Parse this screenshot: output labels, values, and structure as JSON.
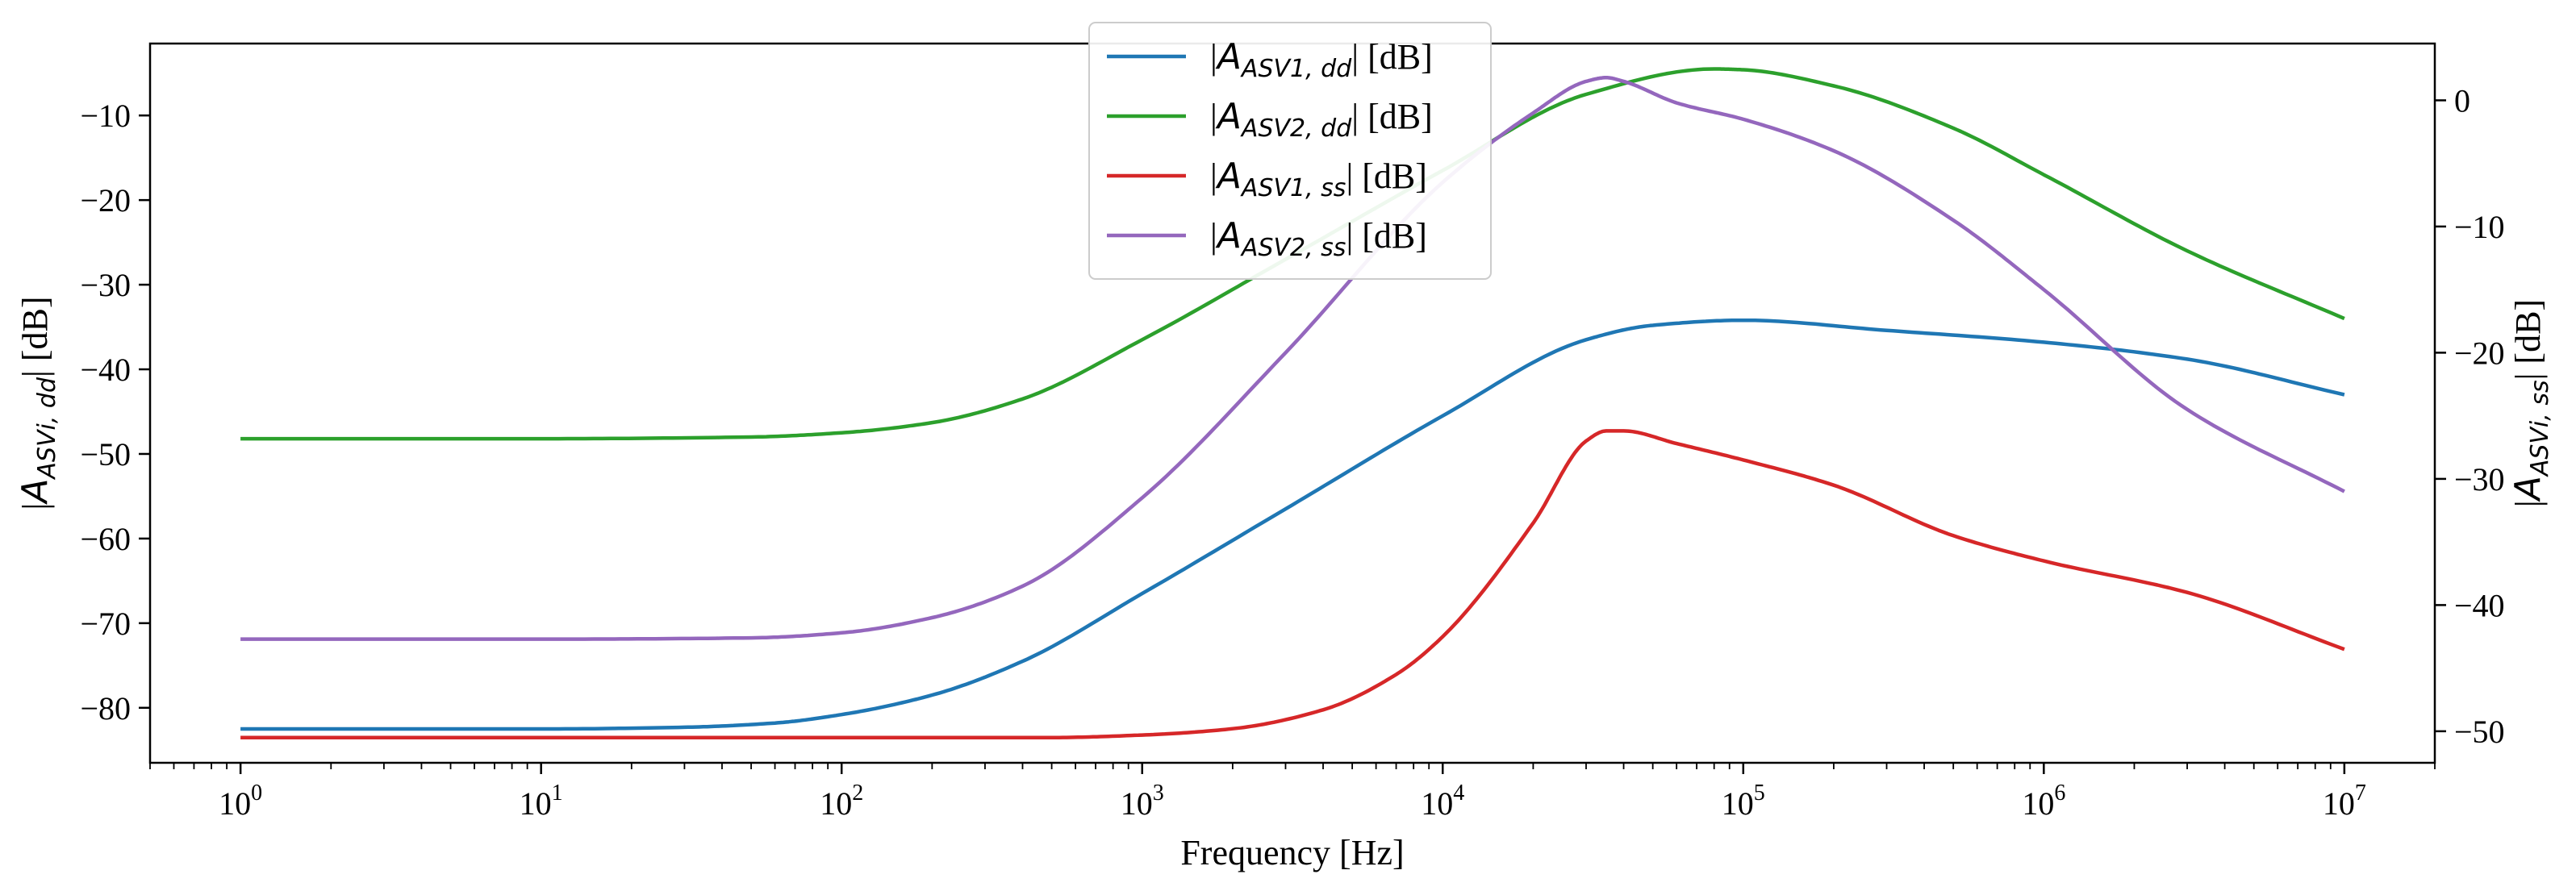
{
  "chart_data": {
    "type": "line",
    "x_scale": "log",
    "xlabel": "Frequency [Hz]",
    "xlim": [
      0.5,
      20000000
    ],
    "x_ticks": [
      {
        "value": 1,
        "base": "10",
        "exp": "0"
      },
      {
        "value": 10,
        "base": "10",
        "exp": "1"
      },
      {
        "value": 100,
        "base": "10",
        "exp": "2"
      },
      {
        "value": 1000,
        "base": "10",
        "exp": "3"
      },
      {
        "value": 10000,
        "base": "10",
        "exp": "4"
      },
      {
        "value": 100000,
        "base": "10",
        "exp": "5"
      },
      {
        "value": 1000000,
        "base": "10",
        "exp": "6"
      },
      {
        "value": 10000000,
        "base": "10",
        "exp": "7"
      }
    ],
    "y_left": {
      "label_sym": "A",
      "label_sub": "ASVi, dd",
      "label_unit": " [dB]",
      "ylim": [
        -86.5,
        -1.5
      ],
      "ticks": [
        -10,
        -20,
        -30,
        -40,
        -50,
        -60,
        -70,
        -80
      ],
      "tick_labels": [
        "−10",
        "−20",
        "−30",
        "−40",
        "−50",
        "−60",
        "−70",
        "−80"
      ]
    },
    "y_right": {
      "label_sym": "A",
      "label_sub": "ASVi, ss",
      "label_unit": " [dB]",
      "ylim": [
        -52.5,
        4.5
      ],
      "ticks": [
        0,
        -10,
        -20,
        -30,
        -40,
        -50
      ],
      "tick_labels": [
        "0",
        "−10",
        "−20",
        "−30",
        "−40",
        "−50"
      ]
    },
    "series": [
      {
        "name": "|A_ASV1,dd| [dB]",
        "sym": "A",
        "sub": "ASV1, dd",
        "unit": " [dB]",
        "axis": "left",
        "color": "#1f77b4",
        "x": [
          1,
          10,
          30,
          60,
          100,
          200,
          400,
          1000,
          3000,
          10000,
          30000,
          50000,
          100000,
          300000,
          1000000,
          3000000,
          10000000
        ],
        "y": [
          -82.5,
          -82.5,
          -82.3,
          -81.8,
          -80.8,
          -78.5,
          -74.5,
          -66.5,
          -56.5,
          -45.5,
          -36.5,
          -34.8,
          -34.2,
          -35.4,
          -36.8,
          -38.8,
          -43
        ]
      },
      {
        "name": "|A_ASV2,dd| [dB]",
        "sym": "A",
        "sub": "ASV2, dd",
        "unit": " [dB]",
        "axis": "left",
        "color": "#2ca02c",
        "x": [
          1,
          10,
          50,
          100,
          200,
          400,
          1000,
          3000,
          10000,
          30000,
          80000,
          100000,
          200000,
          500000,
          1000000,
          3000000,
          10000000
        ],
        "y": [
          -48.2,
          -48.2,
          -48,
          -47.5,
          -46.3,
          -43.5,
          -36.5,
          -27,
          -16.5,
          -7.5,
          -4.5,
          -4.6,
          -6.5,
          -11.5,
          -17,
          -26,
          -34
        ]
      },
      {
        "name": "|A_ASV1,ss| [dB]",
        "sym": "A",
        "sub": "ASV1, ss",
        "unit": " [dB]",
        "axis": "right",
        "color": "#d62728",
        "x": [
          1,
          10,
          100,
          500,
          1000,
          2000,
          4000,
          7000,
          10000,
          20000,
          30000,
          35000,
          40000,
          60000,
          100000,
          200000,
          500000,
          1000000,
          3000000,
          10000000
        ],
        "y": [
          -50.5,
          -50.5,
          -50.5,
          -50.5,
          -50.3,
          -49.8,
          -48.3,
          -45.5,
          -42.5,
          -33.5,
          -27,
          -26.2,
          -26.2,
          -27.2,
          -28.5,
          -30.5,
          -34.5,
          -36.5,
          -39,
          -43.5
        ]
      },
      {
        "name": "|A_ASV2,ss| [dB]",
        "sym": "A",
        "sub": "ASV2, ss",
        "unit": " [dB]",
        "axis": "right",
        "color": "#9467bd",
        "x": [
          1,
          10,
          50,
          100,
          200,
          400,
          1000,
          3000,
          10000,
          20000,
          30000,
          35000,
          40000,
          60000,
          100000,
          200000,
          500000,
          1000000,
          3000000,
          10000000
        ],
        "y": [
          -42.7,
          -42.7,
          -42.6,
          -42.2,
          -41,
          -38.5,
          -31.5,
          -20,
          -6.5,
          -1,
          1.5,
          1.8,
          1.5,
          -0.2,
          -1.5,
          -4,
          -9.5,
          -15,
          -24.5,
          -31
        ]
      }
    ],
    "legend": {
      "location": "top-center"
    }
  }
}
